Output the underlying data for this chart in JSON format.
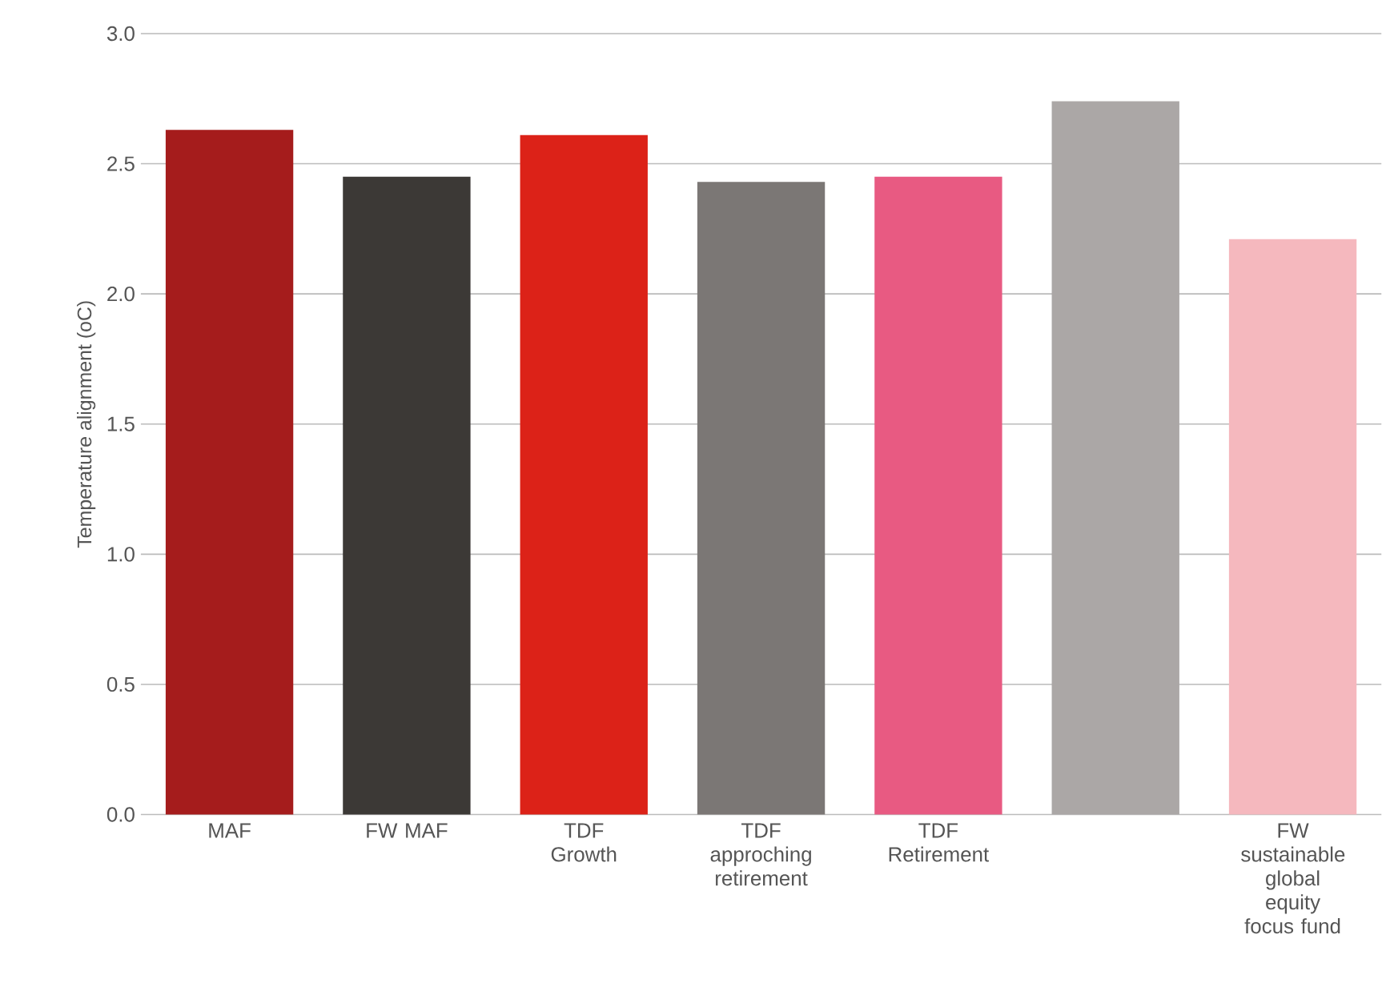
{
  "chart_data": {
    "type": "bar",
    "ylabel": "Temperature alignment (oC)",
    "categories": [
      "MAF",
      "FW MAF",
      "TDF Growth",
      "TDF approching retirement",
      "TDF Retirement",
      null,
      "FW sustainable global equity focus fund"
    ],
    "values": [
      2.63,
      2.45,
      2.61,
      2.43,
      2.45,
      2.74,
      2.21
    ],
    "colors": [
      "#a51c1c",
      "#3c3936",
      "#dc2218",
      "#7b7775",
      "#e85a82",
      "#aba7a6",
      "#f5b8be"
    ],
    "ylim": [
      0,
      3
    ],
    "yticks": [
      {
        "value": 0,
        "label": "0.0"
      },
      {
        "value": 0.5,
        "label": "0.5"
      },
      {
        "value": 1,
        "label": "1.0"
      },
      {
        "value": 1.5,
        "label": "1.5"
      },
      {
        "value": 2,
        "label": "2.0"
      },
      {
        "value": 2.5,
        "label": "2.5"
      },
      {
        "value": 3,
        "label": "3.0"
      }
    ],
    "grid": "y"
  }
}
